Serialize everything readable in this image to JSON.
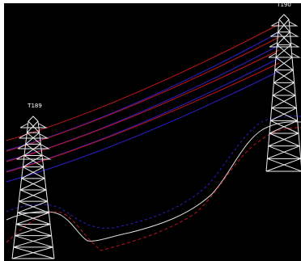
{
  "towers": [
    {
      "label": "T189"
    },
    {
      "label": "T190"
    }
  ]
}
